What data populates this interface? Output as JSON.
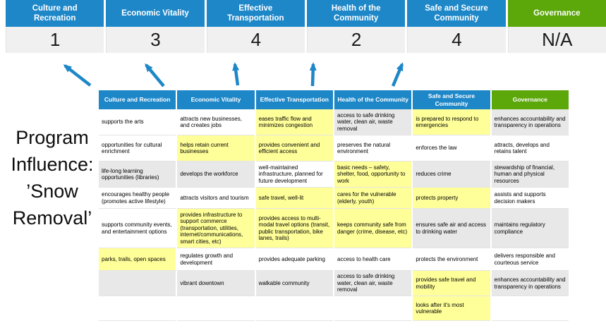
{
  "colors": {
    "accent_blue": "#1E87C8",
    "accent_green": "#5CA70A",
    "score_bg": "#F0F0F0",
    "highlight_yellow": "#FFFF99",
    "row_gray": "#E8E8E8"
  },
  "program_label": {
    "full_text": "Program Influence: ’Snow Removal’",
    "lines": [
      "Program",
      "Influence:",
      "’Snow",
      "Removal’"
    ]
  },
  "scorecard": {
    "columns": [
      {
        "label": "Culture and Recreation",
        "score": "1",
        "theme": "blue"
      },
      {
        "label": "Economic Vitality",
        "score": "3",
        "theme": "blue"
      },
      {
        "label": "Effective Transportation",
        "score": "4",
        "theme": "blue"
      },
      {
        "label": "Health of the Community",
        "score": "2",
        "theme": "blue"
      },
      {
        "label": "Safe and Secure Community",
        "score": "4",
        "theme": "blue"
      },
      {
        "label": "Governance",
        "score": "N/A",
        "theme": "green"
      }
    ]
  },
  "matrix": {
    "columns": [
      {
        "header": "Culture and Recreation",
        "theme": "blue",
        "cells": [
          {
            "text": "supports the arts",
            "bg": "white"
          },
          {
            "text": "opportunities for cultural enrichment",
            "bg": "white"
          },
          {
            "text": "life-long learning opportunities (libraries)",
            "bg": "gray"
          },
          {
            "text": "encourages healthy people (promotes active lifestyle)",
            "bg": "white"
          },
          {
            "text": "supports community events, and entertainment options",
            "bg": "white"
          },
          {
            "text": "parks, trails, open spaces",
            "bg": "yellow"
          },
          {
            "text": "",
            "bg": "gray"
          },
          {
            "text": "",
            "bg": "white"
          }
        ]
      },
      {
        "header": "Economic Vitality",
        "theme": "blue",
        "cells": [
          {
            "text": "attracts new businesses, and creates jobs",
            "bg": "white"
          },
          {
            "text": "helps retain current businesses",
            "bg": "yellow"
          },
          {
            "text": "develops the workforce",
            "bg": "gray"
          },
          {
            "text": "attracts visitors and tourism",
            "bg": "white"
          },
          {
            "text": "provides infrastructure to support commerce (transportation, utilities, internet/communications, smart cities, etc)",
            "bg": "yellow"
          },
          {
            "text": "regulates growth and development",
            "bg": "white"
          },
          {
            "text": "vibrant downtown",
            "bg": "gray"
          },
          {
            "text": "",
            "bg": "white"
          }
        ]
      },
      {
        "header": "Effective Transportation",
        "theme": "blue",
        "cells": [
          {
            "text": "eases traffic flow and minimizes congestion",
            "bg": "yellow"
          },
          {
            "text": "provides convenient and efficient access",
            "bg": "yellow"
          },
          {
            "text": "well-maintained infrastructure, planned for future development",
            "bg": "white"
          },
          {
            "text": "safe travel, well-lit",
            "bg": "yellow"
          },
          {
            "text": "provides access to multi-modal travel options (transit, public transportation, bike lanes, trails)",
            "bg": "yellow"
          },
          {
            "text": "provides adequate parking",
            "bg": "white"
          },
          {
            "text": "walkable community",
            "bg": "gray"
          },
          {
            "text": "",
            "bg": "white"
          }
        ]
      },
      {
        "header": "Health of the Community",
        "theme": "blue",
        "cells": [
          {
            "text": "access to safe drinking water, clean air, waste removal",
            "bg": "gray"
          },
          {
            "text": "preserves the natural environment",
            "bg": "white"
          },
          {
            "text": "basic needs – safety, shelter, food, opportunity to work",
            "bg": "yellow"
          },
          {
            "text": "cares for the vulnerable (elderly, youth)",
            "bg": "yellow"
          },
          {
            "text": "keeps community safe from danger (crime, disease, etc)",
            "bg": "yellow"
          },
          {
            "text": "access to health care",
            "bg": "white"
          },
          {
            "text": "access to safe drinking water, clean air, waste removal",
            "bg": "gray"
          },
          {
            "text": "",
            "bg": "white"
          }
        ]
      },
      {
        "header": "Safe and Secure Community",
        "theme": "blue",
        "cells": [
          {
            "text": "is prepared to respond to emergencies",
            "bg": "yellow"
          },
          {
            "text": "enforces the law",
            "bg": "white"
          },
          {
            "text": "reduces crime",
            "bg": "gray"
          },
          {
            "text": "protects property",
            "bg": "yellow"
          },
          {
            "text": "ensures safe air and access to drinking water",
            "bg": "gray"
          },
          {
            "text": "protects the environment",
            "bg": "white"
          },
          {
            "text": "provides safe travel and mobility",
            "bg": "yellow"
          },
          {
            "text": "looks after it's most vulnerable",
            "bg": "yellow"
          }
        ]
      },
      {
        "header": "Governance",
        "theme": "green",
        "cells": [
          {
            "text": "enhances accountability and transparency in operations",
            "bg": "gray"
          },
          {
            "text": "attracts, develops and retains talent",
            "bg": "white"
          },
          {
            "text": "stewardship of financial, human and physical resources",
            "bg": "gray"
          },
          {
            "text": "assists and supports decision makers",
            "bg": "white"
          },
          {
            "text": "maintains regulatory compliance",
            "bg": "gray"
          },
          {
            "text": "delivers responsible and courteous service",
            "bg": "white"
          },
          {
            "text": "enhances accountability and transparency in operations",
            "bg": "gray"
          },
          {
            "text": "",
            "bg": "white"
          }
        ]
      }
    ]
  }
}
